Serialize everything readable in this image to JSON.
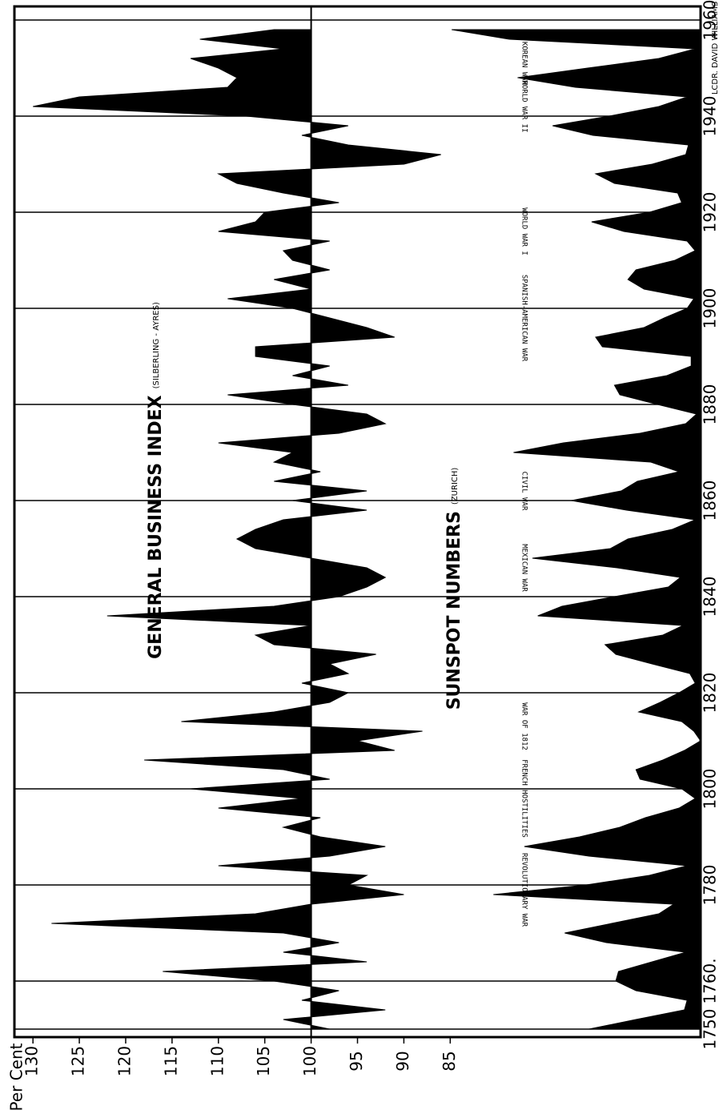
{
  "chart_data": {
    "type": "area",
    "axis_label": "Per Cent",
    "credit": "LCDR. DAVID WILLIAMS",
    "series_labels": [
      {
        "name": "GENERAL BUSINESS INDEX",
        "source": "(SILBERLING - AYRES)"
      },
      {
        "name": "SUNSPOT NUMBERS",
        "source": "(ZURICH)"
      }
    ],
    "annotations": [
      {
        "text": "REVOLUTIONARY WAR",
        "x": 1779
      },
      {
        "text": "FRENCH HOSTILITIES",
        "x": 1798
      },
      {
        "text": "WAR OF 1812",
        "x": 1813
      },
      {
        "text": "MEXICAN WAR",
        "x": 1846
      },
      {
        "text": "CIVIL WAR",
        "x": 1862
      },
      {
        "text": "SPANISH-AMERICAN WAR",
        "x": 1898
      },
      {
        "text": "WORLD WAR I",
        "x": 1916
      },
      {
        "text": "WORLD WAR II",
        "x": 1942
      },
      {
        "text": "KOREAN WAR",
        "x": 1951
      }
    ],
    "x": [
      1750,
      1752,
      1754,
      1756,
      1758,
      1760,
      1762,
      1764,
      1766,
      1768,
      1770,
      1772,
      1774,
      1776,
      1778,
      1780,
      1782,
      1784,
      1786,
      1788,
      1790,
      1792,
      1794,
      1796,
      1798,
      1800,
      1802,
      1804,
      1806,
      1808,
      1810,
      1812,
      1814,
      1816,
      1818,
      1820,
      1822,
      1824,
      1826,
      1828,
      1830,
      1832,
      1834,
      1836,
      1838,
      1840,
      1842,
      1844,
      1846,
      1848,
      1850,
      1852,
      1854,
      1856,
      1858,
      1860,
      1862,
      1864,
      1866,
      1868,
      1870,
      1872,
      1874,
      1876,
      1878,
      1880,
      1882,
      1884,
      1886,
      1888,
      1890,
      1892,
      1894,
      1896,
      1898,
      1900,
      1902,
      1904,
      1906,
      1908,
      1910,
      1912,
      1914,
      1916,
      1918,
      1920,
      1922,
      1924,
      1926,
      1928,
      1930,
      1932,
      1934,
      1936,
      1938,
      1940,
      1942,
      1944,
      1946,
      1948,
      1950,
      1952,
      1954,
      1956,
      1958
    ],
    "series": [
      {
        "name": "GENERAL BUSINESS INDEX",
        "color": "#000000",
        "baseline": 100,
        "values": [
          98,
          103,
          92,
          101,
          97,
          104,
          116,
          94,
          103,
          97,
          103,
          128,
          106,
          100,
          90,
          96,
          94,
          110,
          98,
          92,
          99,
          103,
          99,
          110,
          101,
          113,
          98,
          103,
          118,
          91,
          95,
          88,
          114,
          104,
          98,
          96,
          101,
          96,
          98,
          93,
          104,
          106,
          100,
          122,
          104,
          97,
          94,
          92,
          94,
          100,
          106,
          108,
          106,
          103,
          94,
          102,
          94,
          104,
          99,
          104,
          102,
          110,
          97,
          92,
          94,
          102,
          109,
          96,
          102,
          98,
          106,
          106,
          91,
          94,
          98,
          102,
          109,
          100,
          104,
          98,
          102,
          103,
          98,
          110,
          106,
          105,
          97,
          103,
          108,
          110,
          90,
          86,
          96,
          101,
          96,
          107,
          130,
          125,
          109,
          108,
          110,
          113,
          103,
          112,
          104
        ]
      },
      {
        "name": "SUNSPOT NUMBERS",
        "color": "#000000",
        "axis": "y2",
        "values": [
          83,
          48,
          12,
          10,
          48,
          63,
          61,
          36,
          11,
          70,
          101,
          66,
          31,
          20,
          154,
          85,
          38,
          10,
          83,
          131,
          90,
          60,
          41,
          16,
          4,
          14,
          45,
          48,
          28,
          12,
          0,
          5,
          14,
          46,
          30,
          16,
          4,
          8,
          36,
          63,
          71,
          28,
          13,
          121,
          103,
          64,
          24,
          15,
          62,
          125,
          67,
          54,
          21,
          4,
          55,
          96,
          59,
          47,
          16,
          37,
          139,
          102,
          45,
          11,
          3,
          32,
          60,
          64,
          25,
          7,
          7,
          73,
          78,
          42,
          27,
          10,
          5,
          42,
          54,
          48,
          19,
          4,
          10,
          57,
          81,
          38,
          14,
          17,
          64,
          78,
          36,
          11,
          9,
          80,
          110,
          68,
          31,
          10,
          93,
          136,
          84,
          31,
          4,
          142,
          185
        ]
      }
    ],
    "xlim": [
      1750,
      1960
    ],
    "xticks": [
      1750,
      {
        "value": 1760,
        "label": "1760."
      },
      1780,
      1800,
      1820,
      1840,
      1860,
      1880,
      1900,
      1920,
      1940,
      1960
    ],
    "ylim": [
      58,
      132
    ],
    "yticks": [
      130,
      125,
      120,
      115,
      110,
      105,
      100,
      95,
      90,
      85
    ],
    "y2lim": [
      0,
      510
    ],
    "grid": true
  }
}
